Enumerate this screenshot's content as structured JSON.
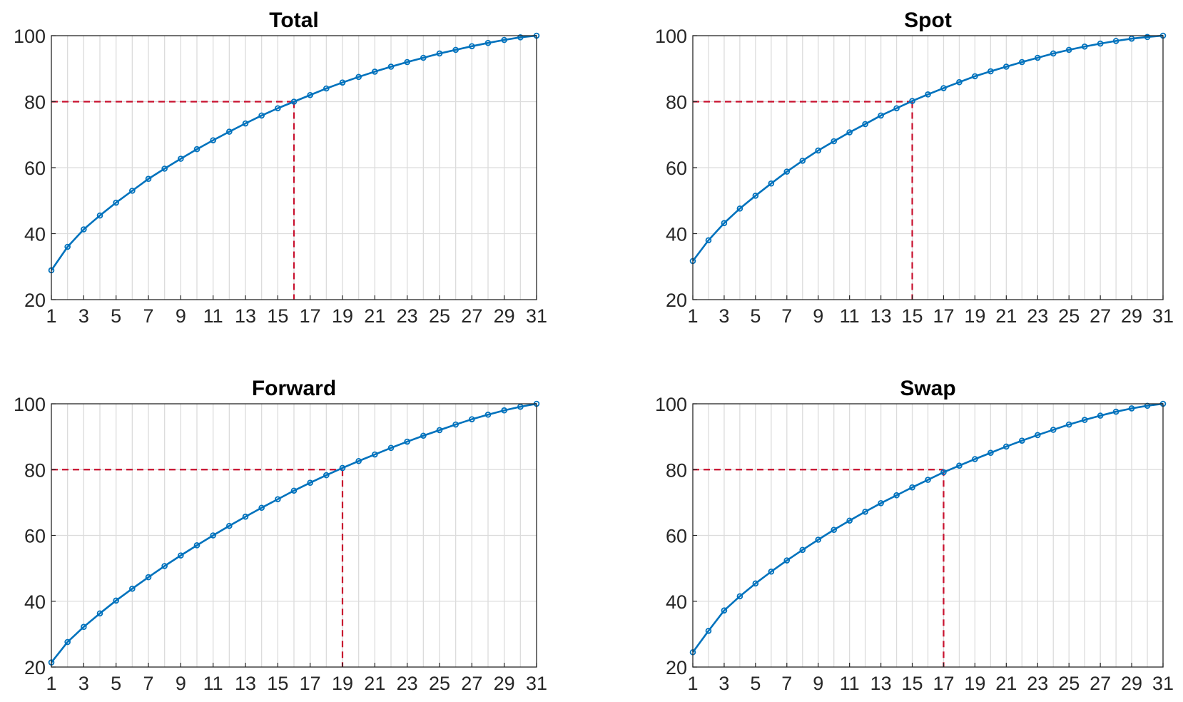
{
  "chart_data": [
    {
      "type": "line",
      "title": "Total",
      "x": [
        1,
        2,
        3,
        4,
        5,
        6,
        7,
        8,
        9,
        10,
        11,
        12,
        13,
        14,
        15,
        16,
        17,
        18,
        19,
        20,
        21,
        22,
        23,
        24,
        25,
        26,
        27,
        28,
        29,
        30,
        31
      ],
      "series": [
        {
          "values": [
            28.9,
            36.0,
            41.3,
            45.5,
            49.4,
            53.0,
            56.6,
            59.7,
            62.7,
            65.6,
            68.3,
            70.9,
            73.4,
            75.8,
            78.0,
            80.0,
            82.0,
            84.0,
            85.8,
            87.5,
            89.1,
            90.6,
            92.0,
            93.3,
            94.6,
            95.7,
            96.8,
            97.8,
            98.7,
            99.5,
            100.0
          ]
        }
      ],
      "threshold": {
        "y": 80,
        "x": 16
      },
      "xticks": [
        "1",
        "3",
        "5",
        "7",
        "9",
        "11",
        "13",
        "15",
        "17",
        "19",
        "21",
        "23",
        "25",
        "27",
        "29",
        "31"
      ],
      "yticks": [
        "20",
        "40",
        "60",
        "80",
        "100"
      ],
      "xlim": [
        1,
        31
      ],
      "ylim": [
        20,
        100
      ],
      "grid": true,
      "colors": {
        "line": "#0072BD",
        "threshold": "#C8102E"
      }
    },
    {
      "type": "line",
      "title": "Spot",
      "x": [
        1,
        2,
        3,
        4,
        5,
        6,
        7,
        8,
        9,
        10,
        11,
        12,
        13,
        14,
        15,
        16,
        17,
        18,
        19,
        20,
        21,
        22,
        23,
        24,
        25,
        26,
        27,
        28,
        29,
        30,
        31
      ],
      "series": [
        {
          "values": [
            31.7,
            38.0,
            43.2,
            47.6,
            51.5,
            55.2,
            58.8,
            62.1,
            65.2,
            68.0,
            70.7,
            73.2,
            75.8,
            78.0,
            80.2,
            82.2,
            84.1,
            85.9,
            87.7,
            89.2,
            90.6,
            92.0,
            93.3,
            94.6,
            95.7,
            96.7,
            97.6,
            98.4,
            99.1,
            99.6,
            100.0
          ]
        }
      ],
      "threshold": {
        "y": 80,
        "x": 15
      },
      "xticks": [
        "1",
        "3",
        "5",
        "7",
        "9",
        "11",
        "13",
        "15",
        "17",
        "19",
        "21",
        "23",
        "25",
        "27",
        "29",
        "31"
      ],
      "yticks": [
        "20",
        "40",
        "60",
        "80",
        "100"
      ],
      "xlim": [
        1,
        31
      ],
      "ylim": [
        20,
        100
      ],
      "grid": true,
      "colors": {
        "line": "#0072BD",
        "threshold": "#C8102E"
      }
    },
    {
      "type": "line",
      "title": "Forward",
      "x": [
        1,
        2,
        3,
        4,
        5,
        6,
        7,
        8,
        9,
        10,
        11,
        12,
        13,
        14,
        15,
        16,
        17,
        18,
        19,
        20,
        21,
        22,
        23,
        24,
        25,
        26,
        27,
        28,
        29,
        30,
        31
      ],
      "series": [
        {
          "values": [
            21.4,
            27.6,
            32.2,
            36.3,
            40.2,
            43.8,
            47.3,
            50.7,
            53.9,
            57.0,
            60.0,
            62.9,
            65.7,
            68.4,
            71.0,
            73.6,
            76.0,
            78.3,
            80.5,
            82.6,
            84.6,
            86.6,
            88.5,
            90.3,
            92.0,
            93.7,
            95.3,
            96.7,
            98.0,
            99.1,
            100.0
          ]
        }
      ],
      "threshold": {
        "y": 80,
        "x": 19
      },
      "xticks": [
        "1",
        "3",
        "5",
        "7",
        "9",
        "11",
        "13",
        "15",
        "17",
        "19",
        "21",
        "23",
        "25",
        "27",
        "29",
        "31"
      ],
      "yticks": [
        "20",
        "40",
        "60",
        "80",
        "100"
      ],
      "xlim": [
        1,
        31
      ],
      "ylim": [
        20,
        100
      ],
      "grid": true,
      "colors": {
        "line": "#0072BD",
        "threshold": "#C8102E"
      }
    },
    {
      "type": "line",
      "title": "Swap",
      "x": [
        1,
        2,
        3,
        4,
        5,
        6,
        7,
        8,
        9,
        10,
        11,
        12,
        13,
        14,
        15,
        16,
        17,
        18,
        19,
        20,
        21,
        22,
        23,
        24,
        25,
        26,
        27,
        28,
        29,
        30,
        31
      ],
      "series": [
        {
          "values": [
            24.5,
            31.0,
            37.2,
            41.5,
            45.4,
            49.0,
            52.4,
            55.6,
            58.7,
            61.7,
            64.5,
            67.2,
            69.8,
            72.2,
            74.6,
            76.9,
            79.2,
            81.2,
            83.2,
            85.1,
            87.0,
            88.8,
            90.5,
            92.1,
            93.7,
            95.1,
            96.4,
            97.6,
            98.6,
            99.4,
            100.0
          ]
        }
      ],
      "threshold": {
        "y": 80,
        "x": 17
      },
      "xticks": [
        "1",
        "3",
        "5",
        "7",
        "9",
        "11",
        "13",
        "15",
        "17",
        "19",
        "21",
        "23",
        "25",
        "27",
        "29",
        "31"
      ],
      "yticks": [
        "20",
        "40",
        "60",
        "80",
        "100"
      ],
      "xlim": [
        1,
        31
      ],
      "ylim": [
        20,
        100
      ],
      "grid": true,
      "colors": {
        "line": "#0072BD",
        "threshold": "#C8102E"
      }
    }
  ]
}
